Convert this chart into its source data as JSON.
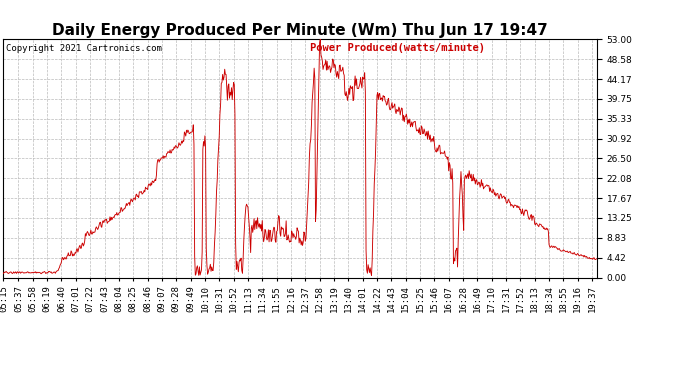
{
  "title": "Daily Energy Produced Per Minute (Wm) Thu Jun 17 19:47",
  "copyright": "Copyright 2021 Cartronics.com",
  "legend_label": "Power Produced(watts/minute)",
  "line_color": "#cc0000",
  "background_color": "#ffffff",
  "grid_color": "#bbbbbb",
  "grid_style": "--",
  "yticks": [
    0.0,
    4.42,
    8.83,
    13.25,
    17.67,
    22.08,
    26.5,
    30.92,
    35.33,
    39.75,
    44.17,
    48.58,
    53.0
  ],
  "ymax": 53.0,
  "ymin": 0.0,
  "title_fontsize": 11,
  "tick_fontsize": 6.5,
  "xtick_labels": [
    "05:15",
    "05:37",
    "05:58",
    "06:19",
    "06:40",
    "07:01",
    "07:22",
    "07:43",
    "08:04",
    "08:25",
    "08:46",
    "09:07",
    "09:28",
    "09:49",
    "10:10",
    "10:31",
    "10:52",
    "11:13",
    "11:34",
    "11:55",
    "12:16",
    "12:37",
    "12:58",
    "13:19",
    "13:40",
    "14:01",
    "14:22",
    "14:43",
    "15:04",
    "15:25",
    "15:46",
    "16:07",
    "16:28",
    "16:49",
    "17:10",
    "17:31",
    "17:52",
    "18:13",
    "18:34",
    "18:55",
    "19:16",
    "19:37"
  ]
}
